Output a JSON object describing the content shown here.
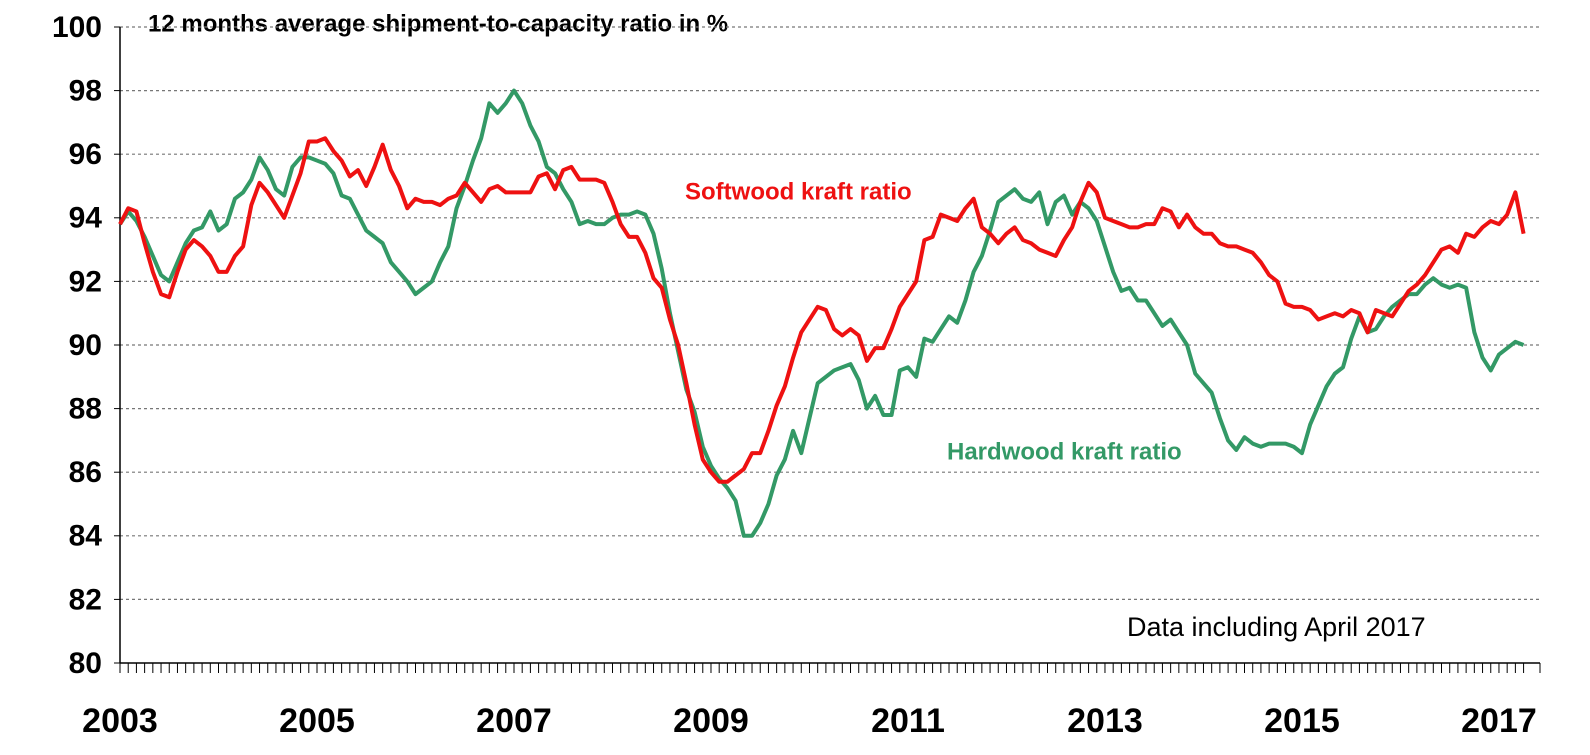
{
  "chart_data": {
    "type": "line",
    "title": "12 months average shipment-to-capacity ratio in %",
    "annotations": [
      "Softwood kraft ratio",
      "Hardwood kraft ratio",
      "Data including April 2017"
    ],
    "categories": [
      "2003",
      null,
      null,
      null,
      null,
      null,
      null,
      null,
      null,
      null,
      null,
      null,
      null,
      null,
      null,
      null,
      null,
      null,
      null,
      null,
      null,
      null,
      null,
      null,
      "2005",
      null,
      null,
      null,
      null,
      null,
      null,
      null,
      null,
      null,
      null,
      null,
      null,
      null,
      null,
      null,
      null,
      null,
      null,
      null,
      null,
      null,
      null,
      null,
      "2007",
      null,
      null,
      null,
      null,
      null,
      null,
      null,
      null,
      null,
      null,
      null,
      null,
      null,
      null,
      null,
      null,
      null,
      null,
      null,
      null,
      null,
      null,
      null,
      "2009",
      null,
      null,
      null,
      null,
      null,
      null,
      null,
      null,
      null,
      null,
      null,
      null,
      null,
      null,
      null,
      null,
      null,
      null,
      null,
      null,
      null,
      null,
      null,
      "2011",
      null,
      null,
      null,
      null,
      null,
      null,
      null,
      null,
      null,
      null,
      null,
      null,
      null,
      null,
      null,
      null,
      null,
      null,
      null,
      null,
      null,
      null,
      null,
      "2013",
      null,
      null,
      null,
      null,
      null,
      null,
      null,
      null,
      null,
      null,
      null,
      null,
      null,
      null,
      null,
      null,
      null,
      null,
      null,
      null,
      null,
      null,
      null,
      "2015",
      null,
      null,
      null,
      null,
      null,
      null,
      null,
      null,
      null,
      null,
      null,
      null,
      null,
      null,
      null,
      null,
      null,
      null,
      null,
      null,
      null,
      null,
      null,
      "2017",
      null,
      null,
      null
    ],
    "series": [
      {
        "name": "Softwood kraft ratio",
        "color": "#ee1111",
        "values": [
          93.8,
          94.3,
          94.2,
          93.2,
          92.3,
          91.6,
          91.5,
          92.3,
          93.0,
          93.3,
          93.1,
          92.8,
          92.3,
          92.3,
          92.8,
          93.1,
          94.4,
          95.1,
          94.8,
          94.4,
          94.0,
          94.7,
          95.4,
          96.4,
          96.4,
          96.5,
          96.1,
          95.8,
          95.3,
          95.5,
          95.0,
          95.6,
          96.3,
          95.5,
          95.0,
          94.3,
          94.6,
          94.5,
          94.5,
          94.4,
          94.6,
          94.7,
          95.1,
          94.8,
          94.5,
          94.9,
          95.0,
          94.8,
          94.8,
          94.8,
          94.8,
          95.3,
          95.4,
          94.9,
          95.5,
          95.6,
          95.2,
          95.2,
          95.2,
          95.1,
          94.5,
          93.8,
          93.4,
          93.4,
          92.9,
          92.1,
          91.8,
          90.8,
          90.0,
          88.8,
          87.5,
          86.4,
          86.0,
          85.7,
          85.7,
          85.9,
          86.1,
          86.6,
          86.6,
          87.3,
          88.1,
          88.7,
          89.6,
          90.4,
          90.8,
          91.2,
          91.1,
          90.5,
          90.3,
          90.5,
          90.3,
          89.5,
          89.9,
          89.9,
          90.5,
          91.2,
          91.6,
          92.0,
          93.3,
          93.4,
          94.1,
          94.0,
          93.9,
          94.3,
          94.6,
          93.7,
          93.5,
          93.2,
          93.5,
          93.7,
          93.3,
          93.2,
          93.0,
          92.9,
          92.8,
          93.3,
          93.7,
          94.5,
          95.1,
          94.8,
          94.0,
          93.9,
          93.8,
          93.7,
          93.7,
          93.8,
          93.8,
          94.3,
          94.2,
          93.7,
          94.1,
          93.7,
          93.5,
          93.5,
          93.2,
          93.1,
          93.1,
          93.0,
          92.9,
          92.6,
          92.2,
          92.0,
          91.3,
          91.2,
          91.2,
          91.1,
          90.8,
          90.9,
          91.0,
          90.9,
          91.1,
          91.0,
          90.4,
          91.1,
          91.0,
          90.9,
          91.3,
          91.7,
          91.9,
          92.2,
          92.6,
          93.0,
          93.1,
          92.9,
          93.5,
          93.4,
          93.7,
          93.9,
          93.8,
          94.1,
          94.8,
          93.5
        ]
      },
      {
        "name": "Hardwood kraft ratio",
        "color": "#339966",
        "values": [
          93.8,
          94.2,
          93.9,
          93.4,
          92.8,
          92.2,
          92.0,
          92.6,
          93.2,
          93.6,
          93.7,
          94.2,
          93.6,
          93.8,
          94.6,
          94.8,
          95.2,
          95.9,
          95.5,
          94.9,
          94.7,
          95.6,
          95.9,
          95.9,
          95.8,
          95.7,
          95.4,
          94.7,
          94.6,
          94.1,
          93.6,
          93.4,
          93.2,
          92.6,
          92.3,
          92.0,
          91.6,
          91.8,
          92.0,
          92.6,
          93.1,
          94.3,
          95.0,
          95.8,
          96.5,
          97.6,
          97.3,
          97.6,
          98.0,
          97.6,
          96.9,
          96.4,
          95.6,
          95.4,
          94.9,
          94.5,
          93.8,
          93.9,
          93.8,
          93.8,
          94.0,
          94.1,
          94.1,
          94.2,
          94.1,
          93.5,
          92.4,
          91.0,
          89.8,
          88.6,
          87.9,
          86.8,
          86.2,
          85.8,
          85.5,
          85.1,
          84.0,
          84.0,
          84.4,
          85.0,
          85.9,
          86.4,
          87.3,
          86.6,
          87.7,
          88.8,
          89.0,
          89.2,
          89.3,
          89.4,
          88.9,
          88.0,
          88.4,
          87.8,
          87.8,
          89.2,
          89.3,
          89.0,
          90.2,
          90.1,
          90.5,
          90.9,
          90.7,
          91.4,
          92.3,
          92.8,
          93.6,
          94.5,
          94.7,
          94.9,
          94.6,
          94.5,
          94.8,
          93.8,
          94.5,
          94.7,
          94.1,
          94.5,
          94.3,
          93.9,
          93.1,
          92.3,
          91.7,
          91.8,
          91.4,
          91.4,
          91.0,
          90.6,
          90.8,
          90.4,
          90.0,
          89.1,
          88.8,
          88.5,
          87.7,
          87.0,
          86.7,
          87.1,
          86.9,
          86.8,
          86.9,
          86.9,
          86.9,
          86.8,
          86.6,
          87.5,
          88.1,
          88.7,
          89.1,
          89.3,
          90.2,
          90.9,
          90.4,
          90.5,
          90.9,
          91.2,
          91.4,
          91.6,
          91.6,
          91.9,
          92.1,
          91.9,
          91.8,
          91.9,
          91.8,
          90.4,
          89.6,
          89.2,
          89.7,
          89.9,
          90.1,
          90.0
        ]
      }
    ],
    "ylim": [
      80,
      100
    ],
    "yticks": [
      80,
      82,
      84,
      86,
      88,
      90,
      92,
      94,
      96,
      98,
      100
    ],
    "grid": true
  }
}
